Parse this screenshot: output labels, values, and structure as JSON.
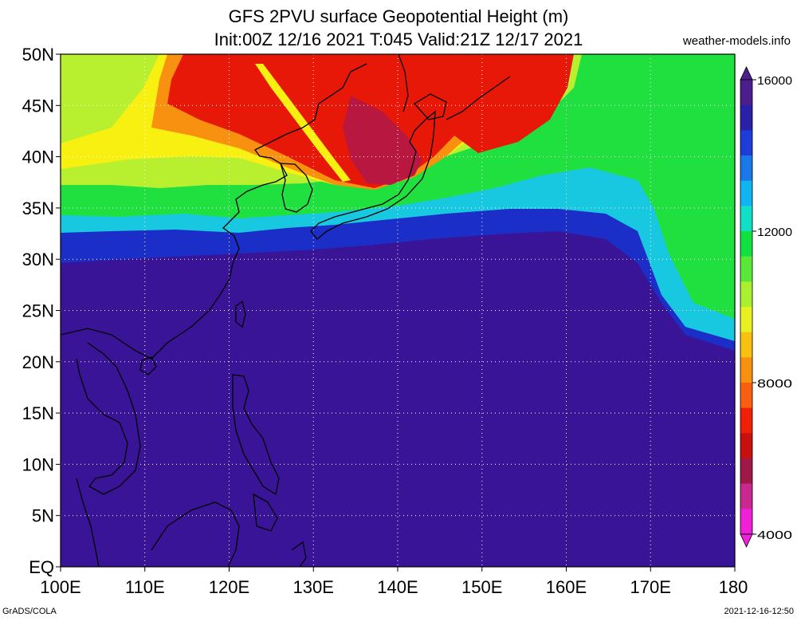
{
  "title_line1": "GFS 2PVU surface Geopotential Height (m)",
  "title_line2": "Init:00Z 12/16 2021 T:045 Valid:21Z 12/17 2021",
  "source": "weather-models.info",
  "footer_left": "GrADS/COLA",
  "footer_right": "2021-12-16-12:50",
  "map": {
    "lon_range": [
      100,
      180
    ],
    "lat_range": [
      0,
      50
    ],
    "lon_labels": [
      "100E",
      "110E",
      "120E",
      "130E",
      "140E",
      "150E",
      "160E",
      "170E",
      "180"
    ],
    "lat_labels": [
      "EQ",
      "5N",
      "10N",
      "15N",
      "20N",
      "25N",
      "30N",
      "35N",
      "40N",
      "45N",
      "50N"
    ],
    "grid_lon_step": 10,
    "grid_lat_step": 5,
    "colors": {
      "background": "#3a1496",
      "blue": "#1c2ec8",
      "cyan": "#18c8e0",
      "green": "#20e040",
      "lime": "#b8f030",
      "yellow": "#f8f010",
      "orange": "#f89010",
      "red": "#e81808",
      "darkred": "#b81840"
    }
  },
  "colorbar": {
    "labels": [
      "16000",
      "12000",
      "8000",
      "4000"
    ],
    "colors": [
      "#4b1e8c",
      "#2a20a8",
      "#1e3cd8",
      "#1a78e8",
      "#10b4f0",
      "#10e0c8",
      "#10e040",
      "#5ae838",
      "#a8f030",
      "#e8f020",
      "#f8c010",
      "#f89010",
      "#f86010",
      "#f02008",
      "#c81010",
      "#a01848",
      "#c82890",
      "#f020d8"
    ]
  }
}
